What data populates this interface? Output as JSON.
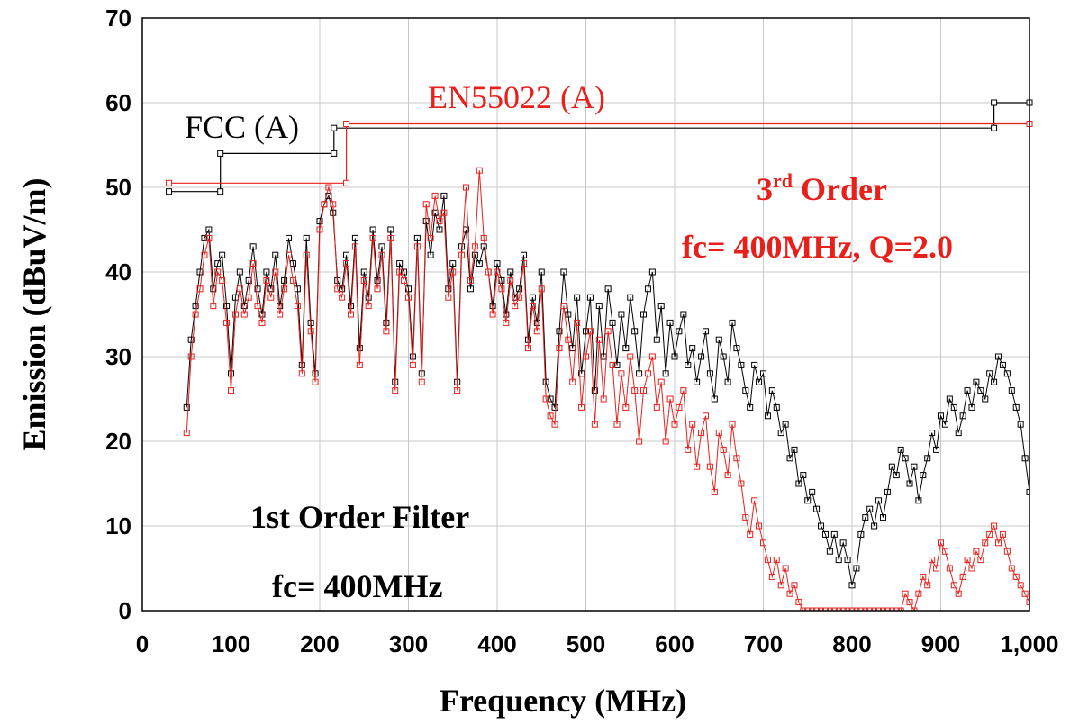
{
  "chart_data": {
    "type": "line",
    "xlabel": "Frequency (MHz)",
    "ylabel": "Emission (dBuV/m)",
    "xlim": [
      0,
      1000
    ],
    "ylim": [
      0,
      70
    ],
    "x_ticks": [
      {
        "value": 0,
        "label": "0"
      },
      {
        "value": 100,
        "label": "100"
      },
      {
        "value": 200,
        "label": "200"
      },
      {
        "value": 300,
        "label": "300"
      },
      {
        "value": 400,
        "label": "400"
      },
      {
        "value": 500,
        "label": "500"
      },
      {
        "value": 600,
        "label": "600"
      },
      {
        "value": 700,
        "label": "700"
      },
      {
        "value": 800,
        "label": "800"
      },
      {
        "value": 900,
        "label": "900"
      },
      {
        "value": 1000,
        "label": "1,000"
      }
    ],
    "y_ticks": [
      {
        "value": 0,
        "label": "0"
      },
      {
        "value": 10,
        "label": "10"
      },
      {
        "value": 20,
        "label": "20"
      },
      {
        "value": 30,
        "label": "30"
      },
      {
        "value": 40,
        "label": "40"
      },
      {
        "value": 50,
        "label": "50"
      },
      {
        "value": 60,
        "label": "60"
      },
      {
        "value": 70,
        "label": "70"
      }
    ],
    "grid": true,
    "limit_lines": [
      {
        "label": "FCC (A)",
        "color": "#000000",
        "x": [
          30,
          88,
          88,
          216,
          216,
          960,
          960,
          1000
        ],
        "y": [
          49.5,
          49.5,
          54,
          54,
          57,
          57,
          60,
          60
        ]
      },
      {
        "label": "EN55022 (A)",
        "color": "#e8201c",
        "x": [
          30,
          230,
          230,
          1000
        ],
        "y": [
          50.5,
          50.5,
          57.5,
          57.5
        ]
      }
    ],
    "series": [
      {
        "color": "#000000",
        "x": [
          50,
          55,
          60,
          65,
          70,
          75,
          80,
          85,
          90,
          95,
          100,
          105,
          110,
          115,
          120,
          125,
          130,
          135,
          140,
          145,
          150,
          155,
          160,
          165,
          170,
          175,
          180,
          185,
          190,
          195,
          200,
          205,
          210,
          215,
          220,
          225,
          230,
          235,
          240,
          245,
          250,
          255,
          260,
          265,
          270,
          275,
          280,
          285,
          290,
          295,
          300,
          305,
          310,
          315,
          320,
          325,
          330,
          335,
          340,
          345,
          350,
          355,
          360,
          365,
          370,
          375,
          380,
          385,
          390,
          395,
          400,
          405,
          410,
          415,
          420,
          425,
          430,
          435,
          440,
          445,
          450,
          455,
          460,
          465,
          470,
          475,
          480,
          485,
          490,
          495,
          500,
          505,
          510,
          515,
          520,
          525,
          530,
          535,
          540,
          545,
          550,
          555,
          560,
          565,
          570,
          575,
          580,
          585,
          590,
          595,
          600,
          605,
          610,
          615,
          620,
          625,
          630,
          635,
          640,
          645,
          650,
          655,
          660,
          665,
          670,
          675,
          680,
          685,
          690,
          695,
          700,
          705,
          710,
          715,
          720,
          725,
          730,
          735,
          740,
          745,
          750,
          755,
          760,
          765,
          770,
          775,
          780,
          785,
          790,
          795,
          800,
          805,
          810,
          815,
          820,
          825,
          830,
          835,
          840,
          845,
          850,
          855,
          860,
          865,
          870,
          875,
          880,
          885,
          890,
          895,
          900,
          905,
          910,
          915,
          920,
          925,
          930,
          935,
          940,
          945,
          950,
          955,
          960,
          965,
          970,
          975,
          980,
          985,
          990,
          995,
          1000
        ],
        "y": [
          24,
          32,
          36,
          40,
          44,
          45,
          38,
          41,
          42,
          36,
          28,
          37,
          40,
          36,
          39,
          43,
          38,
          35,
          40,
          38,
          42,
          36,
          39,
          44,
          41,
          38,
          29,
          44,
          34,
          28,
          46,
          48,
          49,
          47,
          39,
          38,
          42,
          36,
          44,
          31,
          40,
          37,
          45,
          39,
          43,
          34,
          45,
          27,
          41,
          40,
          38,
          30,
          44,
          28,
          46,
          42,
          47,
          45,
          49,
          38,
          41,
          27,
          43,
          45,
          38,
          42,
          41,
          43,
          40,
          36,
          41,
          39,
          35,
          40,
          37,
          38,
          42,
          32,
          37,
          34,
          40,
          27,
          25,
          24,
          33,
          40,
          35,
          31,
          37,
          28,
          33,
          37,
          26,
          36,
          30,
          38,
          34,
          29,
          35,
          31,
          37,
          33,
          28,
          35,
          38,
          40,
          32,
          36,
          28,
          34,
          30,
          33,
          35,
          29,
          31,
          27,
          30,
          33,
          28,
          25,
          32,
          30,
          27,
          34,
          31,
          29,
          26,
          24,
          29,
          27,
          28,
          23,
          26,
          24,
          21,
          22,
          18,
          19,
          15,
          16,
          13,
          14,
          12,
          10,
          9,
          7,
          9,
          6,
          8,
          6,
          3,
          5,
          9,
          11,
          12,
          10,
          13,
          11,
          14,
          17,
          16,
          19,
          18,
          15,
          17,
          13,
          16,
          18,
          21,
          19,
          23,
          22,
          25,
          24,
          21,
          23,
          26,
          24,
          27,
          26,
          25,
          28,
          27,
          30,
          29,
          28,
          26,
          24,
          22,
          18,
          14
        ]
      },
      {
        "color": "#e8201c",
        "x": [
          50,
          55,
          60,
          65,
          70,
          75,
          80,
          85,
          90,
          95,
          100,
          105,
          110,
          115,
          120,
          125,
          130,
          135,
          140,
          145,
          150,
          155,
          160,
          165,
          170,
          175,
          180,
          185,
          190,
          195,
          200,
          205,
          210,
          215,
          220,
          225,
          230,
          235,
          240,
          245,
          250,
          255,
          260,
          265,
          270,
          275,
          280,
          285,
          290,
          295,
          300,
          305,
          310,
          315,
          320,
          325,
          330,
          335,
          340,
          345,
          350,
          355,
          360,
          365,
          370,
          375,
          380,
          385,
          390,
          395,
          400,
          405,
          410,
          415,
          420,
          425,
          430,
          435,
          440,
          445,
          450,
          455,
          460,
          465,
          470,
          475,
          480,
          485,
          490,
          495,
          500,
          505,
          510,
          515,
          520,
          525,
          530,
          535,
          540,
          545,
          550,
          555,
          560,
          565,
          570,
          575,
          580,
          585,
          590,
          595,
          600,
          605,
          610,
          615,
          620,
          625,
          630,
          635,
          640,
          645,
          650,
          655,
          660,
          665,
          670,
          675,
          680,
          685,
          690,
          695,
          700,
          705,
          710,
          715,
          720,
          725,
          730,
          735,
          740,
          745,
          750,
          755,
          760,
          765,
          770,
          775,
          780,
          785,
          790,
          795,
          800,
          805,
          810,
          815,
          820,
          825,
          830,
          835,
          840,
          845,
          850,
          855,
          860,
          865,
          870,
          875,
          880,
          885,
          890,
          895,
          900,
          905,
          910,
          915,
          920,
          925,
          930,
          935,
          940,
          945,
          950,
          955,
          960,
          965,
          970,
          975,
          980,
          985,
          990,
          995,
          1000
        ],
        "y": [
          21,
          30,
          35,
          38,
          42,
          44,
          36,
          40,
          39,
          34,
          26,
          35,
          38,
          35,
          37,
          41,
          36,
          34,
          39,
          37,
          40,
          35,
          38,
          42,
          39,
          36,
          28,
          42,
          33,
          27,
          45,
          48,
          50,
          48,
          38,
          37,
          41,
          35,
          43,
          29,
          39,
          36,
          44,
          38,
          42,
          33,
          44,
          26,
          40,
          39,
          37,
          29,
          43,
          27,
          48,
          44,
          49,
          46,
          47,
          37,
          40,
          26,
          42,
          50,
          39,
          43,
          52,
          44,
          40,
          35,
          40,
          38,
          34,
          39,
          36,
          37,
          41,
          31,
          36,
          33,
          38,
          25,
          23,
          22,
          31,
          36,
          32,
          27,
          34,
          24,
          30,
          33,
          22,
          32,
          25,
          33,
          29,
          22,
          28,
          24,
          30,
          26,
          20,
          26,
          28,
          30,
          24,
          27,
          20,
          25,
          22,
          24,
          26,
          19,
          22,
          17,
          21,
          23,
          17,
          14,
          21,
          19,
          16,
          22,
          18,
          15,
          11,
          9,
          13,
          10,
          8,
          6,
          4,
          6,
          3,
          5,
          2,
          3,
          1,
          0,
          0,
          0,
          0,
          0,
          0,
          0,
          0,
          0,
          0,
          0,
          0,
          0,
          0,
          0,
          0,
          0,
          0,
          0,
          0,
          0,
          0,
          0,
          2,
          1,
          0,
          2,
          4,
          3,
          6,
          5,
          8,
          7,
          5,
          3,
          2,
          4,
          6,
          5,
          7,
          6,
          8,
          9,
          10,
          8,
          9,
          7,
          5,
          4,
          3,
          2,
          1
        ]
      }
    ]
  },
  "annotations": {
    "fcc_label": "FCC (A)",
    "en_label": "EN55022 (A)",
    "third_order_number": "3",
    "third_order_superscript": "rd",
    "third_order_word": " Order",
    "third_order_params": "fc= 400MHz, Q=2.0",
    "first_order_title": "1st Order Filter",
    "first_order_params": "fc= 400MHz",
    "red_color": "#e8201c",
    "black_color": "#000000"
  }
}
